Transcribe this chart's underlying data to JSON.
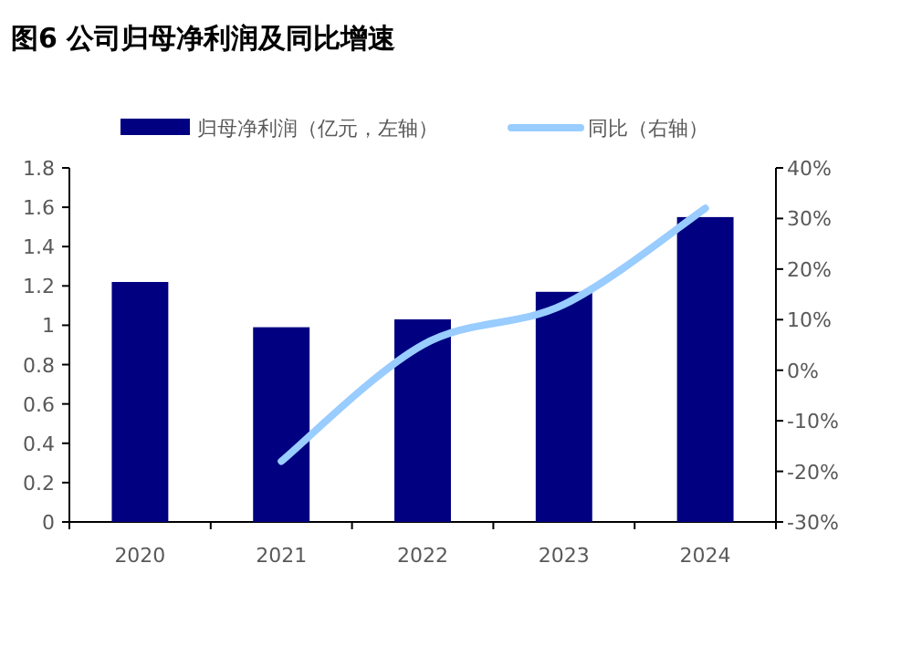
{
  "chart_data": {
    "type": "bar",
    "title": "图6   公司归母净利润及同比增速",
    "categories": [
      "2020",
      "2021",
      "2022",
      "2023",
      "2024"
    ],
    "series": [
      {
        "name": "归母净利润（亿元，左轴）",
        "color": "#000080",
        "values": [
          1.22,
          0.99,
          1.03,
          1.17,
          1.55
        ]
      },
      {
        "name": "同比（右轴）",
        "type": "line",
        "axis": "y2",
        "color": "#99ccff",
        "values": [
          null,
          -18,
          5,
          13,
          32
        ]
      }
    ],
    "ylim": [
      0,
      1.8
    ],
    "yticks": [
      0,
      0.2,
      0.4,
      0.6,
      0.8,
      1,
      1.2,
      1.4,
      1.6,
      1.8
    ],
    "y2lim": [
      -30,
      40
    ],
    "y2ticks": [
      {
        "value": -30,
        "label": "-30%"
      },
      {
        "value": -20,
        "label": "-20%"
      },
      {
        "value": -10,
        "label": "-10%"
      },
      {
        "value": 0,
        "label": "0%"
      },
      {
        "value": 10,
        "label": "10%"
      },
      {
        "value": 20,
        "label": "20%"
      },
      {
        "value": 30,
        "label": "30%"
      },
      {
        "value": 40,
        "label": "40%"
      }
    ],
    "legend": "top",
    "grid": false
  }
}
